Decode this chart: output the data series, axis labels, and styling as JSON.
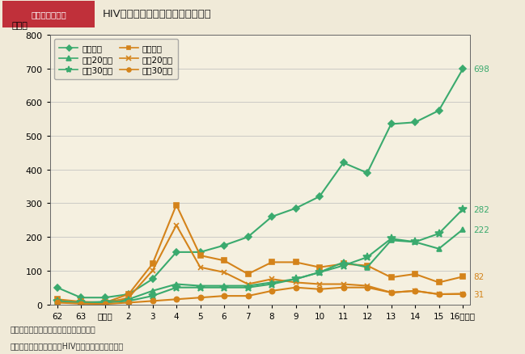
{
  "title": "HIV感染者の性別，年代別年次推移",
  "header": "第１－６－３図",
  "ylabel": "（人）",
  "xlabel_years": [
    "62",
    "63",
    "平成元",
    "2",
    "3",
    "4",
    "5",
    "6",
    "7",
    "8",
    "9",
    "10",
    "11",
    "12",
    "13",
    "14",
    "15",
    "16（年）"
  ],
  "x_indices": [
    0,
    1,
    2,
    3,
    4,
    5,
    6,
    7,
    8,
    9,
    10,
    11,
    12,
    13,
    14,
    15,
    16,
    17
  ],
  "ylim": [
    0,
    800
  ],
  "yticks": [
    0,
    100,
    200,
    300,
    400,
    500,
    600,
    700,
    800
  ],
  "series_order": [
    "male_total",
    "female_total",
    "male_20s",
    "female_20s",
    "male_30s",
    "female_30s"
  ],
  "series": {
    "male_total": {
      "label": "男性総数",
      "color": "#3aaa6e",
      "marker": "D",
      "markersize": 4.5,
      "linewidth": 1.5,
      "values": [
        50,
        20,
        20,
        30,
        75,
        155,
        155,
        175,
        200,
        260,
        285,
        320,
        420,
        390,
        535,
        540,
        575,
        698
      ]
    },
    "female_total": {
      "label": "女性総数",
      "color": "#d4831a",
      "marker": "s",
      "markersize": 4.5,
      "linewidth": 1.5,
      "values": [
        15,
        8,
        5,
        30,
        120,
        295,
        145,
        130,
        90,
        125,
        125,
        110,
        120,
        115,
        80,
        90,
        65,
        82
      ]
    },
    "male_20s": {
      "label": "男刲20歳代",
      "color": "#3aaa6e",
      "marker": "^",
      "markersize": 5,
      "linewidth": 1.5,
      "values": [
        10,
        5,
        8,
        15,
        40,
        60,
        55,
        55,
        55,
        65,
        75,
        95,
        125,
        110,
        190,
        185,
        165,
        222
      ]
    },
    "female_20s": {
      "label": "女刲20歳代",
      "color": "#d4831a",
      "marker": "x",
      "markersize": 5,
      "linewidth": 1.5,
      "values": [
        8,
        3,
        2,
        20,
        100,
        235,
        110,
        95,
        60,
        75,
        65,
        60,
        60,
        55,
        35,
        40,
        30,
        31
      ]
    },
    "male_30s": {
      "label": "男刲30歳代",
      "color": "#3aaa6e",
      "marker": "*",
      "markersize": 7,
      "linewidth": 1.5,
      "values": [
        8,
        5,
        5,
        10,
        25,
        50,
        50,
        50,
        50,
        60,
        75,
        95,
        115,
        140,
        195,
        185,
        210,
        282
      ]
    },
    "female_30s": {
      "label": "女刲30歳代",
      "color": "#d4831a",
      "marker": "o",
      "markersize": 4.5,
      "linewidth": 1.5,
      "values": [
        5,
        2,
        1,
        5,
        10,
        15,
        20,
        25,
        25,
        40,
        50,
        45,
        50,
        50,
        35,
        40,
        30,
        31
      ]
    }
  },
  "end_labels": [
    {
      "key": "male_total",
      "val": 698,
      "color": "#3aaa6e"
    },
    {
      "key": "male_30s",
      "val": 282,
      "color": "#3aaa6e"
    },
    {
      "key": "male_20s",
      "val": 222,
      "color": "#3aaa6e"
    },
    {
      "key": "female_total",
      "val": 82,
      "color": "#d4831a"
    },
    {
      "key": "female_20s",
      "val": 31,
      "color": "#d4831a"
    }
  ],
  "footnote1": "（備考）１．厚生労働省資料より作成。",
  "footnote2": "　　　　２．各年の新規HIV感染者報告数である。",
  "bg_color": "#f0ead8",
  "plot_bg_color": "#f5f0e0",
  "header_bg_color": "#c0303a",
  "header_text_color": "#ffffff"
}
